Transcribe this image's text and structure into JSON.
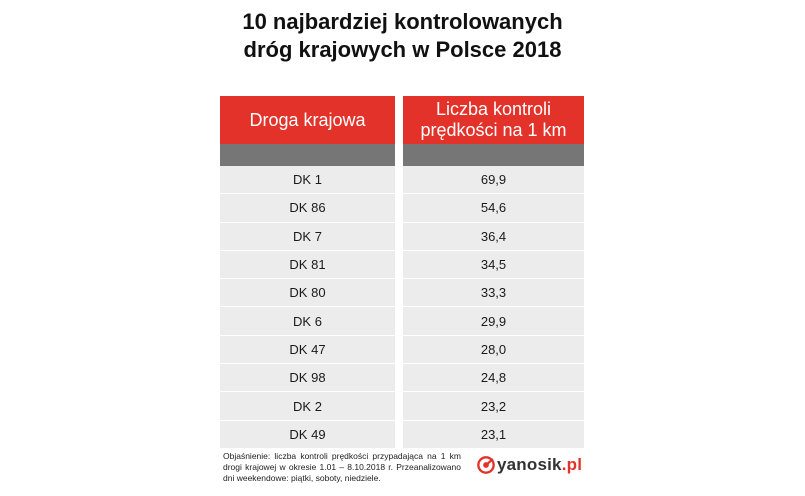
{
  "title": {
    "line1": "10 najbardziej kontrolowanych",
    "line2": "dróg krajowych w Polsce 2018"
  },
  "table": {
    "header": {
      "col1": "Droga krajowa",
      "col2_line1": "Liczba kontroli",
      "col2_line2": "prędkości na 1 km"
    },
    "rows": [
      {
        "road": "DK 1",
        "value": "69,9"
      },
      {
        "road": "DK 86",
        "value": "54,6"
      },
      {
        "road": "DK 7",
        "value": "36,4"
      },
      {
        "road": "DK 81",
        "value": "34,5"
      },
      {
        "road": "DK 80",
        "value": "33,3"
      },
      {
        "road": "DK 6",
        "value": "29,9"
      },
      {
        "road": "DK 47",
        "value": "28,0"
      },
      {
        "road": "DK 98",
        "value": "24,8"
      },
      {
        "road": "DK 2",
        "value": "23,2"
      },
      {
        "road": "DK 49",
        "value": "23,1"
      }
    ]
  },
  "footnote": "Objaśnienie: liczba kontroli prędkości przypadająca na 1 km drogi krajowej w okresie 1.01 – 8.10.2018 r. Przeanalizowano dni weekendowe: piątki, soboty, niedziele.",
  "logo": {
    "name": "yanosik",
    "suffix": ".pl",
    "icon": "yanosik-logo-icon"
  },
  "colors": {
    "header_red": "#e3322a",
    "band_grey": "#767676",
    "row_bg": "#ececec"
  }
}
